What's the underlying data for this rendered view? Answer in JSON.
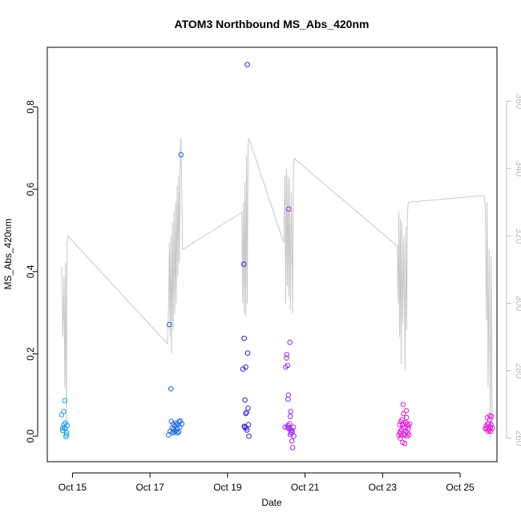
{
  "chart_data": {
    "type": "scatter",
    "title": "ATOM3 Northbound MS_Abs_420nm",
    "xlabel": "Date",
    "ylabel": "MS_Abs_420nm",
    "y2label": "",
    "xlim_days": [
      14.35,
      25.95
    ],
    "ylim": [
      -0.062,
      0.945
    ],
    "y2lim": [
      253,
      376
    ],
    "x_ticks": [
      {
        "day": 15,
        "label": "Oct 15"
      },
      {
        "day": 17,
        "label": "Oct 17"
      },
      {
        "day": 19,
        "label": "Oct 19"
      },
      {
        "day": 21,
        "label": "Oct 21"
      },
      {
        "day": 23,
        "label": "Oct 23"
      },
      {
        "day": 25,
        "label": "Oct 25"
      }
    ],
    "y_ticks": [
      {
        "value": 0.0,
        "label": "0.0"
      },
      {
        "value": 0.2,
        "label": "0.2"
      },
      {
        "value": 0.4,
        "label": "0.4"
      },
      {
        "value": 0.6,
        "label": "0.6"
      },
      {
        "value": 0.8,
        "label": "0.8"
      }
    ],
    "y2_ticks": [
      {
        "value": 260,
        "label": "260"
      },
      {
        "value": 280,
        "label": "280"
      },
      {
        "value": 300,
        "label": "300"
      },
      {
        "value": 320,
        "label": "320"
      },
      {
        "value": 340,
        "label": "340"
      },
      {
        "value": 360,
        "label": "360"
      }
    ],
    "point_colors": [
      "#1ea0e8",
      "#1f68e6",
      "#3320e4",
      "#9a2ae2",
      "#e020d8"
    ],
    "line_color": "#c8c8c8",
    "secondary_line": [
      [
        14.72,
        311
      ],
      [
        14.75,
        290
      ],
      [
        14.78,
        308
      ],
      [
        14.8,
        275
      ],
      [
        14.82,
        312
      ],
      [
        14.84,
        264
      ],
      [
        14.86,
        318
      ],
      [
        14.88,
        320
      ],
      [
        17.45,
        288
      ],
      [
        17.48,
        300
      ],
      [
        17.5,
        318
      ],
      [
        17.52,
        290
      ],
      [
        17.54,
        320
      ],
      [
        17.56,
        285
      ],
      [
        17.58,
        324
      ],
      [
        17.6,
        292
      ],
      [
        17.62,
        327
      ],
      [
        17.64,
        297
      ],
      [
        17.66,
        330
      ],
      [
        17.68,
        300
      ],
      [
        17.7,
        335
      ],
      [
        17.72,
        308
      ],
      [
        17.74,
        338
      ],
      [
        17.76,
        312
      ],
      [
        17.78,
        345
      ],
      [
        17.8,
        349
      ],
      [
        17.84,
        316
      ],
      [
        19.37,
        327
      ],
      [
        19.39,
        300
      ],
      [
        19.41,
        330
      ],
      [
        19.43,
        297
      ],
      [
        19.45,
        336
      ],
      [
        19.47,
        296
      ],
      [
        19.49,
        344
      ],
      [
        19.51,
        300
      ],
      [
        19.53,
        347
      ],
      [
        19.55,
        349
      ],
      [
        20.45,
        318
      ],
      [
        20.48,
        338
      ],
      [
        20.5,
        300
      ],
      [
        20.52,
        340
      ],
      [
        20.54,
        305
      ],
      [
        20.56,
        338
      ],
      [
        20.58,
        302
      ],
      [
        20.6,
        337
      ],
      [
        20.62,
        298
      ],
      [
        20.65,
        333
      ],
      [
        20.68,
        297
      ],
      [
        20.7,
        340
      ],
      [
        20.72,
        343
      ],
      [
        23.38,
        317
      ],
      [
        23.4,
        300
      ],
      [
        23.42,
        327
      ],
      [
        23.44,
        290
      ],
      [
        23.46,
        325
      ],
      [
        23.48,
        282
      ],
      [
        23.5,
        324
      ],
      [
        23.52,
        294
      ],
      [
        23.55,
        320
      ],
      [
        23.58,
        280
      ],
      [
        23.6,
        323
      ],
      [
        23.62,
        292
      ],
      [
        23.64,
        326
      ],
      [
        23.66,
        330
      ],
      [
        25.62,
        332
      ],
      [
        25.65,
        329
      ],
      [
        25.68,
        295
      ],
      [
        25.7,
        330
      ],
      [
        25.72,
        275
      ],
      [
        25.75,
        316
      ],
      [
        25.78,
        260
      ],
      [
        25.8,
        314
      ],
      [
        25.83,
        262
      ]
    ],
    "series": [
      {
        "color": "#1ea0e8",
        "points": [
          [
            14.72,
            0.052
          ],
          [
            14.74,
            0.02
          ],
          [
            14.75,
            0.014
          ],
          [
            14.77,
            0.06
          ],
          [
            14.78,
            0.028
          ],
          [
            14.79,
            0.02
          ],
          [
            14.8,
            0.086
          ],
          [
            14.81,
            0.018
          ],
          [
            14.82,
            0.032
          ],
          [
            14.83,
            -0.001
          ],
          [
            14.84,
            0.003
          ],
          [
            14.85,
            0.008
          ],
          [
            14.86,
            0.026
          ]
        ]
      },
      {
        "color": "#1f68e6",
        "points": [
          [
            17.48,
            0.003
          ],
          [
            17.5,
            0.271
          ],
          [
            17.52,
            0.012
          ],
          [
            17.54,
            0.115
          ],
          [
            17.55,
            0.036
          ],
          [
            17.57,
            0.02
          ],
          [
            17.58,
            0.008
          ],
          [
            17.6,
            0.03
          ],
          [
            17.62,
            0.01
          ],
          [
            17.64,
            0.025
          ],
          [
            17.66,
            0.012
          ],
          [
            17.68,
            0.032
          ],
          [
            17.7,
            0.018
          ],
          [
            17.72,
            0.028
          ],
          [
            17.74,
            0.01
          ],
          [
            17.75,
            0.035
          ],
          [
            17.77,
            0.022
          ],
          [
            17.78,
            0.037
          ],
          [
            17.8,
            0.684
          ],
          [
            17.82,
            0.03
          ],
          [
            17.62,
            0.018
          ],
          [
            17.7,
            0.008
          ]
        ]
      },
      {
        "color": "#3320e4",
        "points": [
          [
            19.4,
            0.163
          ],
          [
            19.42,
            0.418
          ],
          [
            19.43,
            0.238
          ],
          [
            19.44,
            0.022
          ],
          [
            19.45,
            0.088
          ],
          [
            19.47,
            0.055
          ],
          [
            19.48,
            0.02
          ],
          [
            19.5,
            0.015
          ],
          [
            19.51,
            0.903
          ],
          [
            19.52,
            0.202
          ],
          [
            19.53,
            0.068
          ],
          [
            19.54,
            0.028
          ],
          [
            19.55,
            0.0
          ],
          [
            19.47,
            0.168
          ],
          [
            19.43,
            0.024
          ],
          [
            19.49,
            0.058
          ]
        ]
      },
      {
        "color": "#9a2ae2",
        "points": [
          [
            20.48,
            0.022
          ],
          [
            20.5,
            0.168
          ],
          [
            20.52,
            0.19
          ],
          [
            20.53,
            0.198
          ],
          [
            20.54,
            0.022
          ],
          [
            20.55,
            0.172
          ],
          [
            20.56,
            0.09
          ],
          [
            20.57,
            0.1
          ],
          [
            20.58,
            0.552
          ],
          [
            20.59,
            0.018
          ],
          [
            20.6,
            0.03
          ],
          [
            20.61,
            0.228
          ],
          [
            20.62,
            0.048
          ],
          [
            20.63,
            0.06
          ],
          [
            20.64,
            0.008
          ],
          [
            20.65,
            0.015
          ],
          [
            20.66,
            -0.012
          ],
          [
            20.67,
            0.01
          ],
          [
            20.68,
            -0.028
          ],
          [
            20.7,
            0.022
          ],
          [
            20.71,
            0.0
          ],
          [
            20.58,
            0.02
          ],
          [
            20.62,
            0.004
          ],
          [
            20.56,
            0.026
          ]
        ]
      },
      {
        "color": "#e020d8",
        "points": [
          [
            23.42,
            0.002
          ],
          [
            23.44,
            0.028
          ],
          [
            23.45,
            0.008
          ],
          [
            23.46,
            -0.005
          ],
          [
            23.47,
            0.035
          ],
          [
            23.48,
            0.002
          ],
          [
            23.49,
            0.015
          ],
          [
            23.5,
            0.04
          ],
          [
            23.51,
            0.028
          ],
          [
            23.52,
            -0.015
          ],
          [
            23.53,
            0.077
          ],
          [
            23.54,
            0.055
          ],
          [
            23.55,
            0.03
          ],
          [
            23.56,
            0.005
          ],
          [
            23.57,
            -0.018
          ],
          [
            23.58,
            0.02
          ],
          [
            23.59,
            0.033
          ],
          [
            23.6,
            0.012
          ],
          [
            23.61,
            0.062
          ],
          [
            23.62,
            0.045
          ],
          [
            23.63,
            0.0
          ],
          [
            23.64,
            0.03
          ],
          [
            23.65,
            0.008
          ],
          [
            23.66,
            0.018
          ],
          [
            23.67,
            0.025
          ],
          [
            23.68,
            0.003
          ],
          [
            23.7,
            0.03
          ],
          [
            23.46,
            0.012
          ],
          [
            23.53,
            0.02
          ],
          [
            23.58,
            0.002
          ],
          [
            25.65,
            0.018
          ],
          [
            25.67,
            0.025
          ],
          [
            25.68,
            0.02
          ],
          [
            25.7,
            0.045
          ],
          [
            25.72,
            0.012
          ],
          [
            25.73,
            0.03
          ],
          [
            25.74,
            0.018
          ],
          [
            25.76,
            0.04
          ],
          [
            25.77,
            0.05
          ],
          [
            25.78,
            0.022
          ],
          [
            25.79,
            0.012
          ],
          [
            25.8,
            0.028
          ],
          [
            25.81,
            0.048
          ],
          [
            25.83,
            0.02
          ],
          [
            25.71,
            0.03
          ],
          [
            25.75,
            0.015
          ]
        ]
      }
    ]
  }
}
